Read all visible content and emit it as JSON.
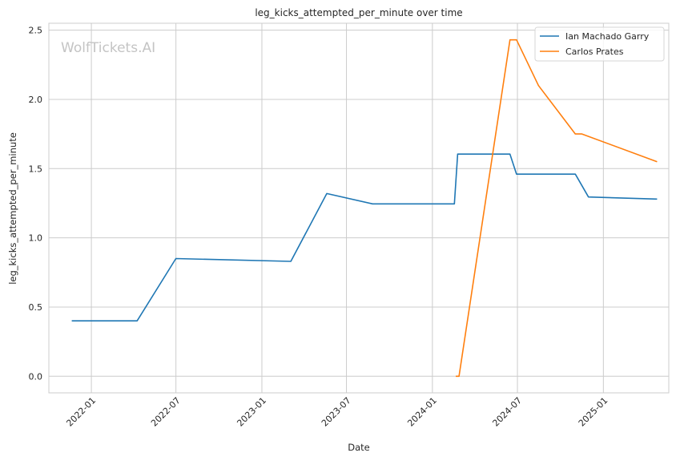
{
  "chart_data": {
    "type": "line",
    "title": "leg_kicks_attempted_per_minute over time",
    "xlabel": "Date",
    "ylabel": "leg_kicks_attempted_per_minute",
    "watermark": "WolfTickets.AI",
    "x_ticks": [
      "2022-01",
      "2022-07",
      "2023-01",
      "2023-07",
      "2024-01",
      "2024-07",
      "2025-01"
    ],
    "y_ticks": [
      "0.0",
      "0.5",
      "1.0",
      "1.5",
      "2.0",
      "2.5"
    ],
    "xlim": [
      "2021-10-02",
      "2025-05-21"
    ],
    "ylim": [
      -0.12,
      2.55
    ],
    "grid": true,
    "legend_position": "top-right",
    "series": [
      {
        "name": "Ian Machado Garry",
        "color": "#1f77b4",
        "points": [
          [
            "2021-11-20",
            0.4
          ],
          [
            "2022-04-09",
            0.4
          ],
          [
            "2022-07-01",
            0.85
          ],
          [
            "2023-03-04",
            0.83
          ],
          [
            "2023-05-20",
            1.32
          ],
          [
            "2023-08-26",
            1.245
          ],
          [
            "2024-02-17",
            1.245
          ],
          [
            "2024-02-24",
            1.605
          ],
          [
            "2024-06-15",
            1.605
          ],
          [
            "2024-06-29",
            1.46
          ],
          [
            "2024-11-02",
            1.46
          ],
          [
            "2024-11-30",
            1.295
          ],
          [
            "2025-04-26",
            1.28
          ]
        ]
      },
      {
        "name": "Carlos Prates",
        "color": "#ff7f0e",
        "points": [
          [
            "2024-02-20",
            0.0
          ],
          [
            "2024-02-27",
            0.0
          ],
          [
            "2024-06-15",
            2.43
          ],
          [
            "2024-06-29",
            2.43
          ],
          [
            "2024-08-15",
            2.1
          ],
          [
            "2024-11-02",
            1.75
          ],
          [
            "2024-11-16",
            1.75
          ],
          [
            "2025-04-26",
            1.55
          ]
        ]
      }
    ]
  }
}
